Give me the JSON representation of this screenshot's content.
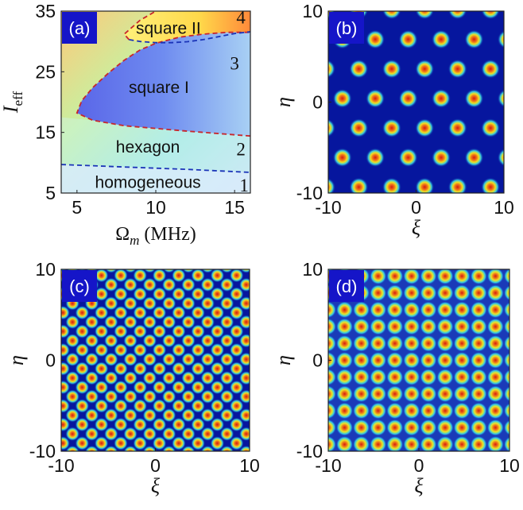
{
  "chart_data": [
    {
      "type": "heatmap",
      "panel_label": "(a)",
      "xlabel": "Ω_m (MHz)",
      "xlabel_parts": {
        "symbol": "Ω",
        "subscript": "m",
        "unit": "(MHz)"
      },
      "ylabel": "I_eff",
      "ylabel_parts": {
        "symbol": "I",
        "subscript": "eff"
      },
      "xlim": [
        4,
        16
      ],
      "ylim": [
        5,
        35
      ],
      "xticks": [
        5,
        10,
        15
      ],
      "yticks": [
        5,
        15,
        25,
        35
      ],
      "xtick_labels": [
        "5",
        "10",
        "15"
      ],
      "ytick_labels": [
        "5",
        "15",
        "25",
        "35"
      ],
      "regions": [
        {
          "name": "homogeneous",
          "number": "1",
          "label_at": [
            9.5,
            6.8
          ],
          "number_at": [
            15.6,
            6.3
          ]
        },
        {
          "name": "hexagon",
          "number": "2",
          "label_at": [
            9.5,
            12.6
          ],
          "number_at": [
            15.4,
            12.3
          ]
        },
        {
          "name": "square I",
          "number": "3",
          "label_at": [
            10.2,
            22.4
          ],
          "number_at": [
            15.0,
            26.4
          ]
        },
        {
          "name": "square II",
          "number": "4",
          "label_at": [
            10.8,
            32.2
          ],
          "number_at": [
            15.4,
            34.0
          ]
        }
      ],
      "boundaries": [
        {
          "between": "homogeneous|hexagon",
          "style": "dashed",
          "color": "#1a33b8",
          "points": [
            [
              4,
              9.7
            ],
            [
              8,
              9.3
            ],
            [
              12,
              8.9
            ],
            [
              16,
              8.4
            ]
          ]
        },
        {
          "between": "hexagon|square I",
          "style": "dashed",
          "color": "#c8262c",
          "points": [
            [
              16,
              14.4
            ],
            [
              12,
              15.2
            ],
            [
              8,
              16.1
            ],
            [
              6,
              17.0
            ],
            [
              5.0,
              18.2
            ],
            [
              5.3,
              20.2
            ],
            [
              6,
              22.4
            ],
            [
              7,
              24.8
            ],
            [
              8,
              26.9
            ],
            [
              9,
              28.6
            ],
            [
              10,
              29.7
            ],
            [
              11.5,
              30.7
            ],
            [
              13,
              31.2
            ],
            [
              14.5,
              31.5
            ],
            [
              16,
              31.5
            ]
          ]
        },
        {
          "between": "square I|square II",
          "style": "dashed",
          "color": "#1a33b8",
          "points": [
            [
              8.3,
              30.3
            ],
            [
              9,
              30.0
            ],
            [
              10,
              29.8
            ],
            [
              11,
              29.8
            ],
            [
              12,
              29.95
            ],
            [
              13,
              30.3
            ],
            [
              14,
              30.8
            ],
            [
              15,
              31.3
            ],
            [
              16,
              31.6
            ]
          ]
        },
        {
          "between": "square II|background",
          "style": "dashed",
          "color": "#c8262c",
          "points": [
            [
              8.3,
              30.3
            ],
            [
              8.0,
              31.2
            ],
            [
              9.0,
              33.5
            ],
            [
              10.0,
              35.0
            ]
          ]
        }
      ]
    },
    {
      "type": "heatmap",
      "panel_label": "(b)",
      "pattern": "hexagon",
      "xlabel": "ξ",
      "ylabel": "η",
      "xlim": [
        -10,
        10
      ],
      "ylim": [
        -10,
        10
      ],
      "xticks": [
        -10,
        0,
        10
      ],
      "yticks": [
        -10,
        0,
        10
      ],
      "xtick_labels": [
        "-10",
        "0",
        "10"
      ],
      "ytick_labels": [
        "-10",
        "0",
        "10"
      ]
    },
    {
      "type": "heatmap",
      "panel_label": "(c)",
      "pattern": "square I",
      "xlabel": "ξ",
      "ylabel": "η",
      "xlim": [
        -10,
        10
      ],
      "ylim": [
        -10,
        10
      ],
      "xticks": [
        -10,
        0,
        10
      ],
      "yticks": [
        -10,
        0,
        10
      ],
      "xtick_labels": [
        "-10",
        "0",
        "10"
      ],
      "ytick_labels": [
        "-10",
        "0",
        "10"
      ]
    },
    {
      "type": "heatmap",
      "panel_label": "(d)",
      "pattern": "square II",
      "xlabel": "ξ",
      "ylabel": "η",
      "xlim": [
        -10,
        10
      ],
      "ylim": [
        -10,
        10
      ],
      "xticks": [
        -10,
        0,
        10
      ],
      "yticks": [
        -10,
        0,
        10
      ],
      "xtick_labels": [
        "-10",
        "0",
        "10"
      ],
      "ytick_labels": [
        "-10",
        "0",
        "10"
      ]
    }
  ],
  "colors": {
    "label_box": "#1515c8",
    "label_text": "#ffffff",
    "boundary_red": "#c8262c",
    "boundary_blue": "#1a33b8",
    "pattern_background": "#06169e",
    "pattern_spot_core": "#d41a10",
    "pattern_spot_mid": "#f0e020",
    "pattern_spot_rim": "#36c8e0",
    "square_I_fill": "#6a7ef0"
  },
  "grid": false
}
